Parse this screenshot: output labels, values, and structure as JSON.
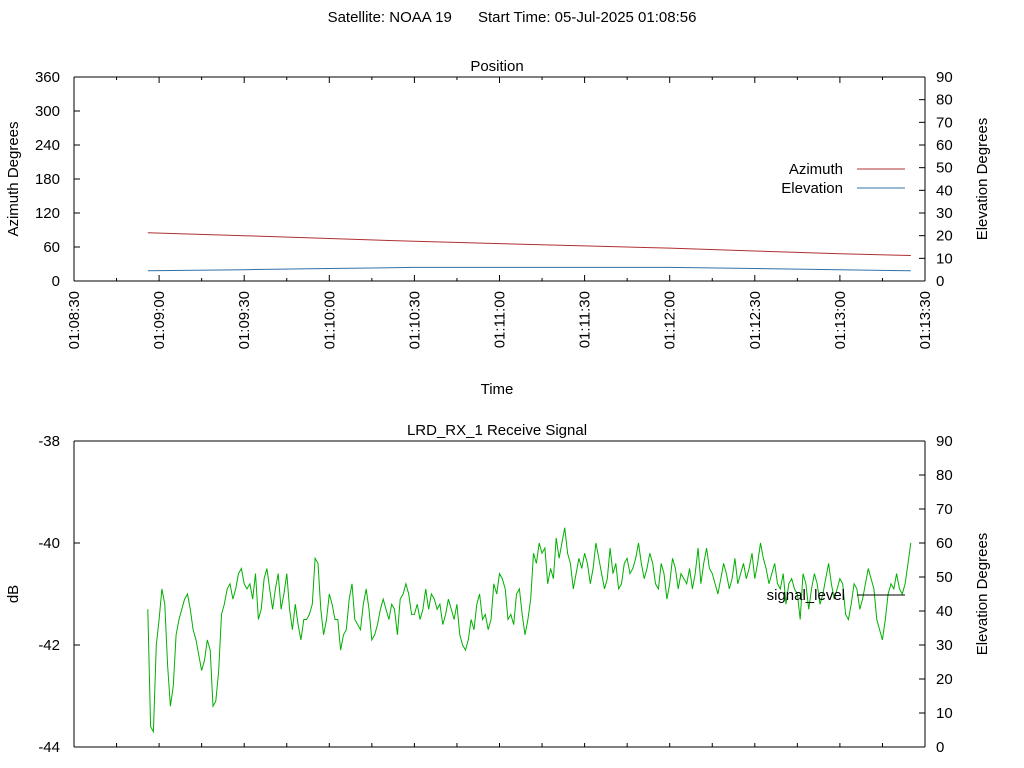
{
  "header": {
    "satellite_label": "Satellite: NOAA 19",
    "start_label": "Start Time: 05-Jul-2025 01:08:56"
  },
  "colors": {
    "azimuth": "#b03030",
    "elevation": "#3070a8",
    "signal": "#00b000",
    "axis": "#000000"
  },
  "chart_data": [
    {
      "type": "line",
      "title": "Position",
      "xlabel": "Time",
      "ylabel": "Azimuth Degrees",
      "y2label": "Elevation Degrees",
      "xticks": [
        "01:08:30",
        "01:09:00",
        "01:09:30",
        "01:10:00",
        "01:10:30",
        "01:11:00",
        "01:11:30",
        "01:12:00",
        "01:12:30",
        "01:13:00",
        "01:13:30"
      ],
      "xlim_seconds_after_01_08_30": [
        0,
        300
      ],
      "ylim": [
        0,
        360
      ],
      "yticks": [
        0,
        60,
        120,
        180,
        240,
        300,
        360
      ],
      "y2lim": [
        0,
        90
      ],
      "y2ticks": [
        0,
        10,
        20,
        30,
        40,
        50,
        60,
        70,
        80,
        90
      ],
      "legend_position": "right",
      "series": [
        {
          "name": "Azimuth",
          "axis": "y",
          "x": [
            "01:08:56",
            "01:09:30",
            "01:10:00",
            "01:10:30",
            "01:11:00",
            "01:11:30",
            "01:12:00",
            "01:12:30",
            "01:13:00",
            "01:13:25"
          ],
          "values": [
            85,
            80,
            75,
            70,
            66,
            62,
            58,
            53,
            48,
            45
          ]
        },
        {
          "name": "Elevation",
          "axis": "y2",
          "x": [
            "01:08:56",
            "01:09:30",
            "01:10:00",
            "01:10:30",
            "01:11:00",
            "01:11:30",
            "01:12:00",
            "01:12:30",
            "01:13:00",
            "01:13:25"
          ],
          "values": [
            4.5,
            5,
            5.5,
            6,
            6,
            6,
            6,
            5.5,
            5,
            4.5
          ]
        }
      ]
    },
    {
      "type": "line",
      "title": "LRD_RX_1 Receive Signal",
      "ylabel": "dB",
      "y2label": "Elevation Degrees",
      "ylim": [
        -44,
        -38
      ],
      "yticks": [
        -44,
        -42,
        -40,
        -38
      ],
      "y2lim": [
        0,
        90
      ],
      "y2ticks": [
        0,
        10,
        20,
        30,
        40,
        50,
        60,
        70,
        80,
        90
      ],
      "legend_position": "right",
      "series": [
        {
          "name": "signal_level",
          "x_range": [
            "01:08:56",
            "01:13:25"
          ],
          "values": [
            -41.3,
            -43.6,
            -43.7,
            -42.0,
            -41.5,
            -40.9,
            -41.2,
            -42.4,
            -43.2,
            -42.8,
            -41.8,
            -41.5,
            -41.3,
            -41.1,
            -41.0,
            -41.3,
            -41.7,
            -41.9,
            -42.2,
            -42.5,
            -42.3,
            -41.9,
            -42.1,
            -43.2,
            -43.1,
            -42.5,
            -41.4,
            -41.2,
            -40.9,
            -40.8,
            -41.1,
            -40.9,
            -40.6,
            -40.5,
            -40.8,
            -40.9,
            -40.8,
            -41.1,
            -40.6,
            -41.5,
            -41.3,
            -40.7,
            -40.5,
            -40.9,
            -41.3,
            -40.9,
            -40.6,
            -41.3,
            -41.0,
            -40.6,
            -41.3,
            -41.7,
            -41.2,
            -41.6,
            -41.9,
            -41.5,
            -41.5,
            -41.4,
            -41.2,
            -40.3,
            -40.4,
            -41.3,
            -41.8,
            -41.5,
            -41.0,
            -41.2,
            -41.5,
            -41.5,
            -42.1,
            -41.8,
            -41.7,
            -41.1,
            -40.8,
            -41.5,
            -41.6,
            -41.7,
            -41.2,
            -40.9,
            -41.3,
            -41.9,
            -41.8,
            -41.6,
            -41.3,
            -41.1,
            -41.3,
            -41.5,
            -41.2,
            -41.3,
            -41.8,
            -41.1,
            -41.0,
            -40.8,
            -41.0,
            -41.4,
            -41.4,
            -41.2,
            -41.5,
            -41.3,
            -40.9,
            -41.3,
            -41.0,
            -41.1,
            -41.3,
            -41.2,
            -41.6,
            -41.4,
            -41.1,
            -41.3,
            -41.5,
            -41.2,
            -41.8,
            -42.0,
            -42.1,
            -41.9,
            -41.5,
            -41.7,
            -41.2,
            -41.0,
            -41.5,
            -41.4,
            -41.7,
            -41.5,
            -40.8,
            -41.0,
            -40.6,
            -40.7,
            -40.9,
            -41.5,
            -41.4,
            -41.6,
            -41.0,
            -40.9,
            -41.4,
            -41.8,
            -41.5,
            -41.1,
            -40.2,
            -40.4,
            -40.0,
            -40.2,
            -40.1,
            -40.8,
            -40.5,
            -40.7,
            -39.9,
            -40.3,
            -40.0,
            -39.7,
            -40.2,
            -40.4,
            -40.9,
            -40.6,
            -40.3,
            -40.5,
            -40.2,
            -40.4,
            -40.8,
            -40.5,
            -40.0,
            -40.3,
            -40.6,
            -40.9,
            -40.7,
            -40.1,
            -40.6,
            -40.4,
            -40.9,
            -40.8,
            -40.4,
            -40.3,
            -40.6,
            -40.5,
            -40.3,
            -40.0,
            -40.4,
            -40.7,
            -40.5,
            -40.2,
            -40.4,
            -40.8,
            -40.9,
            -40.4,
            -40.6,
            -41.1,
            -40.8,
            -40.3,
            -40.5,
            -40.9,
            -40.6,
            -40.7,
            -40.8,
            -40.5,
            -40.9,
            -40.6,
            -40.1,
            -40.8,
            -40.4,
            -40.1,
            -40.5,
            -40.6,
            -40.8,
            -41.0,
            -40.7,
            -40.4,
            -40.6,
            -40.9,
            -40.7,
            -40.3,
            -40.8,
            -40.6,
            -40.4,
            -40.7,
            -40.5,
            -40.2,
            -40.7,
            -40.4,
            -40.0,
            -40.3,
            -40.5,
            -40.8,
            -40.6,
            -40.4,
            -40.8,
            -40.9,
            -40.6,
            -41.2,
            -40.8,
            -40.7,
            -40.9,
            -41.0,
            -41.5,
            -40.6,
            -40.8,
            -41.3,
            -40.9,
            -40.6,
            -40.8,
            -41.2,
            -41.0,
            -40.7,
            -40.4,
            -40.8,
            -41.1,
            -40.9,
            -40.7,
            -40.8,
            -41.4,
            -41.5,
            -41.2,
            -40.8,
            -40.9,
            -41.3,
            -41.1,
            -40.8,
            -40.5,
            -40.7,
            -40.9,
            -41.5,
            -41.7,
            -41.9,
            -41.5,
            -41.0,
            -40.8,
            -40.9,
            -40.6,
            -40.9,
            -41.0,
            -40.8,
            -40.4,
            -40.0
          ]
        }
      ]
    }
  ]
}
